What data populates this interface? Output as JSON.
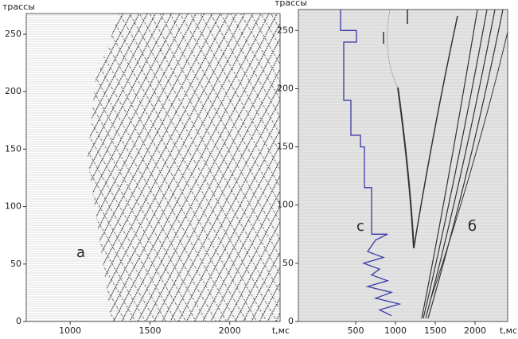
{
  "chart_data": [
    {
      "type": "seismic",
      "y_axis_label": "трассы",
      "x_axis_label": "t,мс",
      "annotation": "а",
      "xlim": [
        725,
        2315
      ],
      "ylim": [
        0,
        268
      ],
      "xticks": [
        1000,
        1500,
        2000
      ],
      "yticks": [
        0,
        50,
        100,
        150,
        200,
        250
      ]
    },
    {
      "type": "line",
      "y_axis_label": "трассы",
      "x_axis_label": "t,мс",
      "annotations": [
        "с",
        "б"
      ],
      "xlim": [
        -220,
        2410
      ],
      "ylim": [
        0,
        268
      ],
      "xticks": [
        500,
        1000,
        1500,
        2000
      ],
      "yticks": [
        0,
        50,
        100,
        150,
        200,
        250
      ],
      "series": [
        {
          "color": "#3a3aa8",
          "x": [
            310,
            310,
            510,
            510,
            350,
            350,
            440,
            440,
            560,
            560,
            610,
            610,
            700,
            700,
            900,
            750,
            650,
            850,
            600,
            800,
            700,
            900,
            650,
            950,
            750,
            1050,
            800,
            950
          ],
          "values": [
            268,
            250,
            250,
            240,
            240,
            190,
            190,
            160,
            160,
            150,
            150,
            115,
            115,
            75,
            75,
            70,
            60,
            55,
            50,
            45,
            40,
            35,
            30,
            25,
            20,
            15,
            10,
            5
          ]
        }
      ]
    }
  ]
}
